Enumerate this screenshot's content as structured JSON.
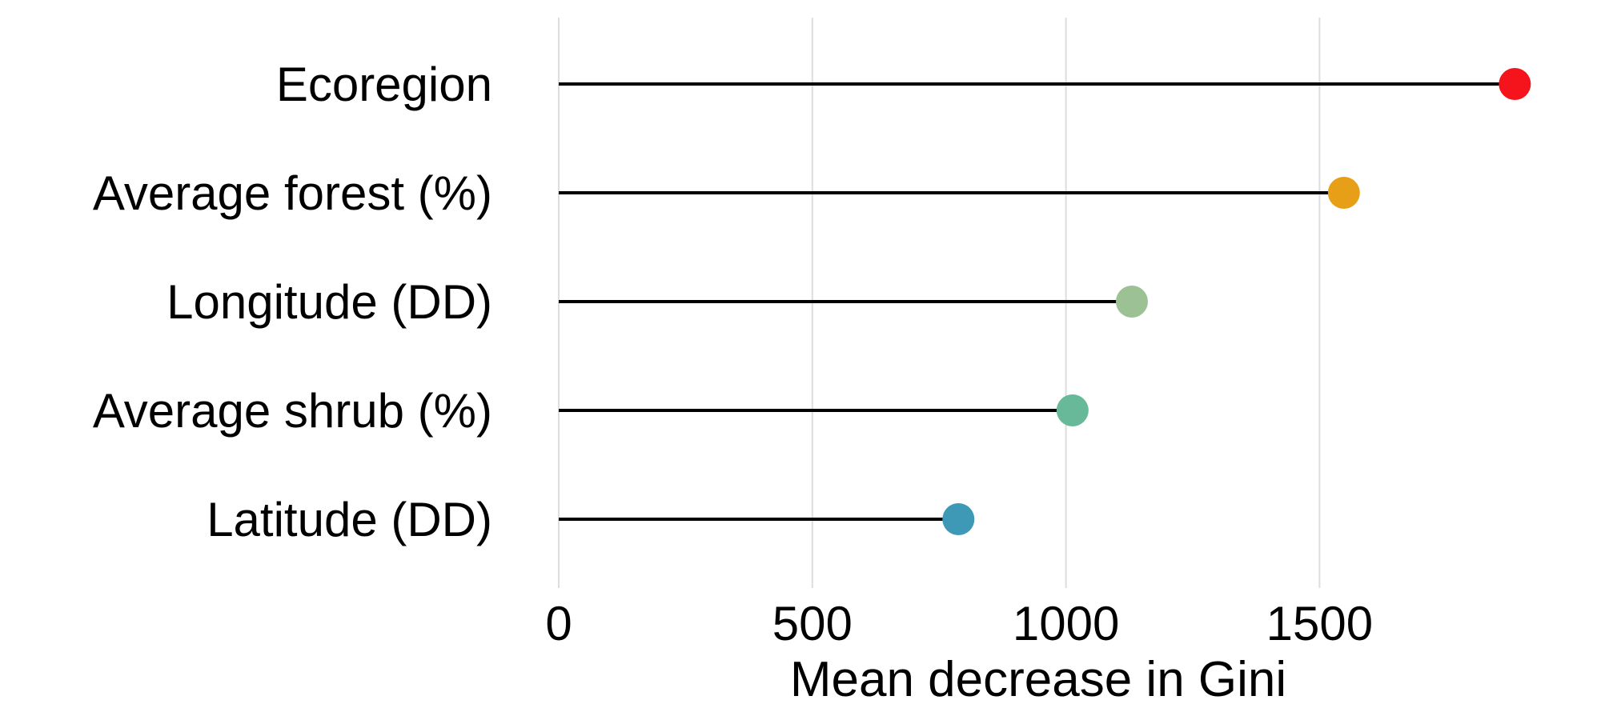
{
  "chart_data": {
    "type": "lollipop",
    "title": "",
    "xlabel": "Mean decrease in Gini",
    "ylabel": "",
    "xlim": [
      0,
      1900
    ],
    "xticks": [
      0,
      500,
      1000,
      1500
    ],
    "x_tick_labels": [
      "0",
      "500",
      "1000",
      "1500"
    ],
    "grid": "vertical",
    "legend": "none",
    "categories": [
      "Ecoregion",
      "Average forest (%)",
      "Longitude (DD)",
      "Average shrub (%)",
      "Latitude (DD)"
    ],
    "values": [
      1885,
      1548,
      1130,
      1013,
      788
    ],
    "colors": [
      "#f5141c",
      "#e69f17",
      "#9bc195",
      "#68b89a",
      "#3d99b5"
    ]
  }
}
